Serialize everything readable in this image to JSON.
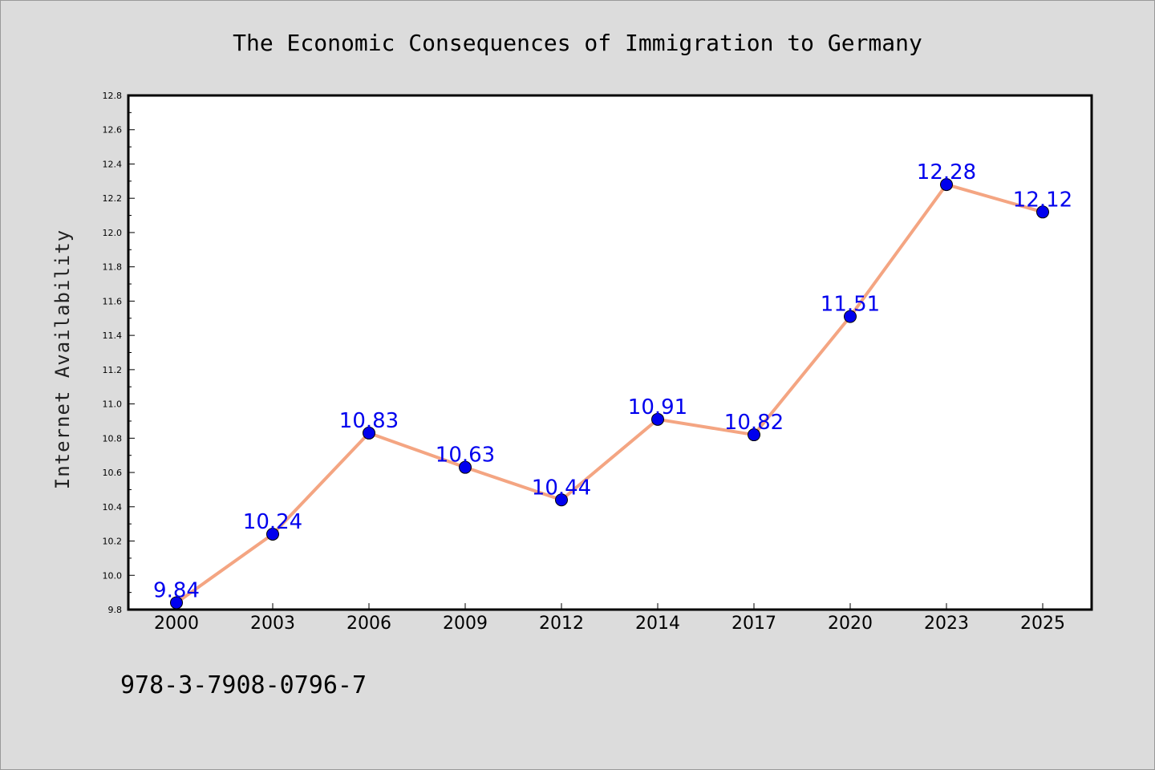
{
  "chart_data": {
    "type": "line",
    "title": "The Economic Consequences of Immigration to Germany",
    "xlabel": "",
    "ylabel": "Internet Availability",
    "categories": [
      "2000",
      "2003",
      "2006",
      "2009",
      "2012",
      "2014",
      "2017",
      "2020",
      "2023",
      "2025"
    ],
    "series": [
      {
        "values": [
          9.84,
          10.24,
          10.83,
          10.63,
          10.44,
          10.91,
          10.82,
          11.51,
          12.28,
          12.12
        ]
      }
    ],
    "data_labels": [
      "9.84",
      "10.24",
      "10.83",
      "10.63",
      "10.44",
      "10.91",
      "10.82",
      "11.51",
      "12.28",
      "12.12"
    ],
    "ylim": [
      9.8,
      12.8
    ],
    "y_ticks": [
      "9.8",
      "10.0",
      "10.2",
      "10.4",
      "10.6",
      "10.8",
      "11.0",
      "11.2",
      "11.4",
      "11.6",
      "11.8",
      "12.0",
      "12.2",
      "12.4",
      "12.6",
      "12.8"
    ],
    "grid": false,
    "legend": "none",
    "colors": {
      "line": "#f4a582",
      "marker": "#0000ee",
      "label": "#0000ee",
      "background": "#dcdcdc",
      "plot_area": "#ffffff"
    }
  },
  "footer": {
    "isbn": "978-3-7908-0796-7"
  }
}
